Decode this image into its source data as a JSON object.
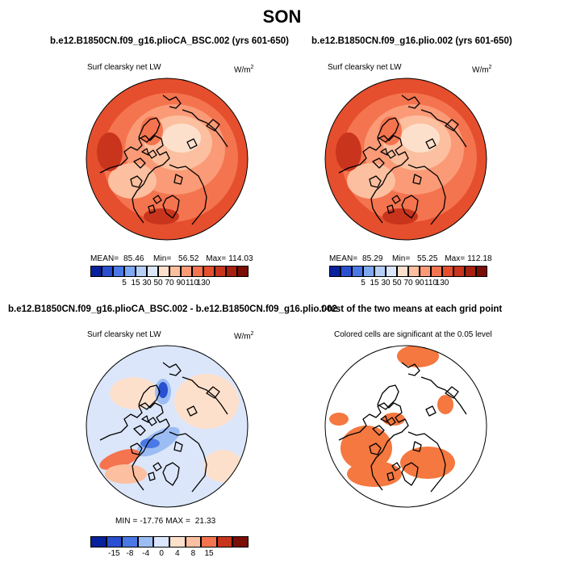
{
  "title": "SON",
  "colors": {
    "coast": "#000000",
    "ocean_white": "#ffffff"
  },
  "chart_data": [
    {
      "type": "heatmap",
      "projection": "north-polar-stereographic",
      "title": "b.e12.B1850CN.f09_g16.plioCA_BSC.002 (yrs 601-650)",
      "variable": "Surf clearsky net LW",
      "units": "W/m",
      "units_sup": "2",
      "stats": {
        "mean_label": "MEAN=",
        "mean": "85.46",
        "min_label": "Min=",
        "min": "56.52",
        "max_label": "Max=",
        "max": "114.03"
      },
      "colorbar": {
        "levels": [
          "5",
          "15",
          "30",
          "50",
          "70",
          "90",
          "110",
          "130"
        ],
        "colors": [
          "#08219c",
          "#2a4fd0",
          "#4a78e6",
          "#7ea8f2",
          "#b6cff7",
          "#dbe6fa",
          "#fde0cc",
          "#fcbf9f",
          "#fb9a77",
          "#f4744f",
          "#e54f2e",
          "#c9341d",
          "#a8200f",
          "#7a0d05"
        ]
      }
    },
    {
      "type": "heatmap",
      "projection": "north-polar-stereographic",
      "title": "b.e12.B1850CN.f09_g16.plio.002 (yrs 601-650)",
      "variable": "Surf clearsky net LW",
      "units": "W/m",
      "units_sup": "2",
      "stats": {
        "mean_label": "MEAN=",
        "mean": "85.29",
        "min_label": "Min=",
        "min": "55.25",
        "max_label": "Max=",
        "max": "112.18"
      },
      "colorbar": {
        "levels": [
          "5",
          "15",
          "30",
          "50",
          "70",
          "90",
          "110",
          "130"
        ],
        "colors": [
          "#08219c",
          "#2a4fd0",
          "#4a78e6",
          "#7ea8f2",
          "#b6cff7",
          "#dbe6fa",
          "#fde0cc",
          "#fcbf9f",
          "#fb9a77",
          "#f4744f",
          "#e54f2e",
          "#c9341d",
          "#a8200f",
          "#7a0d05"
        ]
      }
    },
    {
      "type": "heatmap",
      "projection": "north-polar-stereographic",
      "title": "b.e12.B1850CN.f09_g16.plioCA_BSC.002 - b.e12.B1850CN.f09_g16.plio.002",
      "variable": "Surf clearsky net LW",
      "units": "W/m",
      "units_sup": "2",
      "stats": {
        "min_label": "MIN =",
        "min": "-17.76",
        "max_label": "MAX =",
        "max": "21.33"
      },
      "colorbar": {
        "levels": [
          "-15",
          "-8",
          "-4",
          "0",
          "4",
          "8",
          "15"
        ],
        "colors": [
          "#08219c",
          "#2a4fd0",
          "#4a78e6",
          "#9cbdf3",
          "#dbe6fa",
          "#fde0cc",
          "#fcbf9f",
          "#f4744f",
          "#c9341d",
          "#7a0d05"
        ]
      }
    },
    {
      "type": "heatmap",
      "projection": "north-polar-stereographic",
      "title": "t-test of the two means at each grid point",
      "variable": "Colored cells are significant at the 0.05 level",
      "significant_color": "#f4783f"
    }
  ]
}
